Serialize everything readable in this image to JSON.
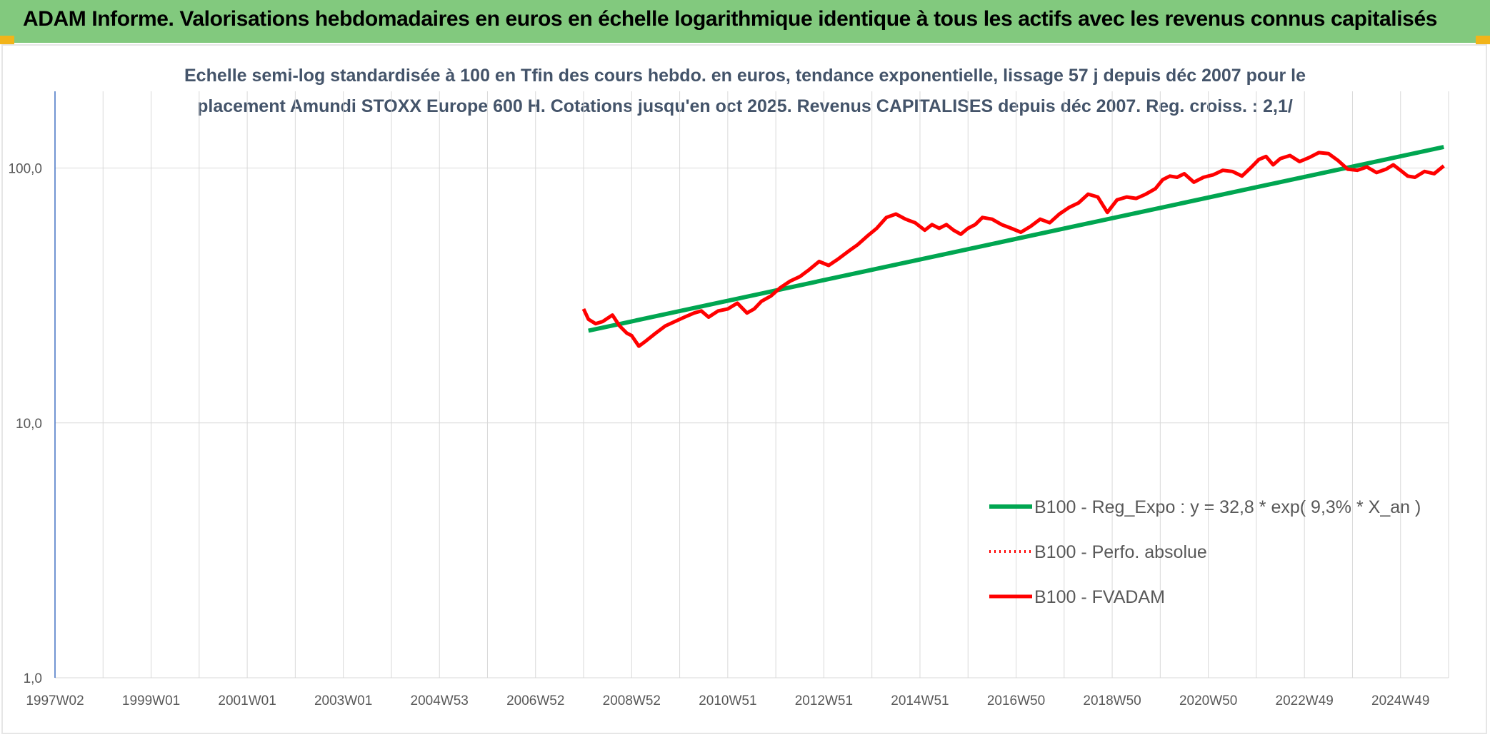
{
  "header": {
    "title": "ADAM Informe. Valorisations hebdomadaires en euros en échelle logarithmique identique à tous les actifs avec les revenus connus capitalisés"
  },
  "colors": {
    "banner": "#82c97e",
    "corner": "#f2b41a",
    "trend": "#00a651",
    "perf": "#ff0000",
    "fvadam": "#ff0000",
    "grid": "#d9d9d9",
    "axis": "#4472c4"
  },
  "chart_data": {
    "type": "line",
    "subtitle_lines": [
      "Echelle semi-log standardisée à 100 en Tfin des cours hebdo. en euros, tendance exponentielle, lissage 57 j depuis déc 2007 pour le",
      "placement Amundi STOXX Europe 600 H. Cotations jusqu'en oct 2025. Revenus CAPITALISES depuis déc 2007. Reg. croiss. : 2,1/"
    ],
    "y_scale": "log",
    "ylim": [
      1,
      200
    ],
    "y_ticks": [
      "100,0",
      "10,0",
      "1,0"
    ],
    "y_tick_values": [
      100,
      10,
      1
    ],
    "xlim": [
      1997.0,
      2026.0
    ],
    "x_ticks": [
      "1997W02",
      "1999W01",
      "2001W01",
      "2003W01",
      "2004W53",
      "2006W52",
      "2008W52",
      "2010W51",
      "2012W51",
      "2014W51",
      "2016W50",
      "2018W50",
      "2020W50",
      "2022W49",
      "2024W49"
    ],
    "x_tick_values": [
      1997.0,
      1999.0,
      2001.0,
      2003.0,
      2005.0,
      2007.0,
      2009.0,
      2011.0,
      2013.0,
      2015.0,
      2017.0,
      2019.0,
      2021.0,
      2023.0,
      2025.0
    ],
    "grid": true,
    "legend_position": "lower-right",
    "series": [
      {
        "name": "B100 - Reg_Expo : y = 32,8 * exp( 9,3% * X_an )",
        "style": "solid-thick",
        "x": [
          2008.1,
          2025.9
        ],
        "y": [
          23.0,
          121.0
        ]
      },
      {
        "name": "B100 - Perfo. absolue",
        "style": "dotted",
        "x": [],
        "y": []
      },
      {
        "name": "B100 - FVADAM",
        "style": "solid",
        "x": [
          2008.0,
          2008.1,
          2008.25,
          2008.4,
          2008.6,
          2008.75,
          2008.9,
          2009.0,
          2009.15,
          2009.3,
          2009.5,
          2009.7,
          2009.9,
          2010.1,
          2010.3,
          2010.45,
          2010.6,
          2010.8,
          2011.0,
          2011.2,
          2011.4,
          2011.55,
          2011.7,
          2011.9,
          2012.1,
          2012.3,
          2012.5,
          2012.7,
          2012.9,
          2013.1,
          2013.3,
          2013.5,
          2013.7,
          2013.9,
          2014.1,
          2014.3,
          2014.5,
          2014.7,
          2014.9,
          2015.1,
          2015.25,
          2015.4,
          2015.55,
          2015.7,
          2015.85,
          2016.0,
          2016.15,
          2016.3,
          2016.5,
          2016.7,
          2016.9,
          2017.1,
          2017.3,
          2017.5,
          2017.7,
          2017.9,
          2018.1,
          2018.3,
          2018.5,
          2018.7,
          2018.9,
          2019.1,
          2019.3,
          2019.5,
          2019.7,
          2019.9,
          2020.05,
          2020.2,
          2020.35,
          2020.5,
          2020.7,
          2020.9,
          2021.1,
          2021.3,
          2021.5,
          2021.7,
          2021.9,
          2022.05,
          2022.2,
          2022.35,
          2022.5,
          2022.7,
          2022.9,
          2023.1,
          2023.3,
          2023.5,
          2023.7,
          2023.9,
          2024.1,
          2024.3,
          2024.5,
          2024.7,
          2024.85,
          2025.0,
          2025.15,
          2025.3,
          2025.5,
          2025.7,
          2025.9
        ],
        "y": [
          28.0,
          25.5,
          24.5,
          25.0,
          26.5,
          24.0,
          22.5,
          22.0,
          20.0,
          21.0,
          22.5,
          24.0,
          25.0,
          26.0,
          27.0,
          27.5,
          26.0,
          27.5,
          28.0,
          29.5,
          27.0,
          28.0,
          30.0,
          31.5,
          34.0,
          36.0,
          37.5,
          40.0,
          43.0,
          41.5,
          44.0,
          47.0,
          50.0,
          54.0,
          58.0,
          64.0,
          66.0,
          63.0,
          61.0,
          57.0,
          60.0,
          58.0,
          60.0,
          57.0,
          55.0,
          58.0,
          60.0,
          64.0,
          63.0,
          60.0,
          58.0,
          56.0,
          59.0,
          63.0,
          61.0,
          66.0,
          70.0,
          73.0,
          79.0,
          77.0,
          67.0,
          75.0,
          77.0,
          76.0,
          79.0,
          83.0,
          90.0,
          93.0,
          92.0,
          95.0,
          88.0,
          92.0,
          94.0,
          98.0,
          97.0,
          93.0,
          101.0,
          108.0,
          111.0,
          103.0,
          109.0,
          112.0,
          106.0,
          110.0,
          115.0,
          114.0,
          107.0,
          99.0,
          98.0,
          101.0,
          96.0,
          99.0,
          103.0,
          98.0,
          93.0,
          92.0,
          97.0,
          95.0,
          102.0
        ]
      }
    ]
  }
}
